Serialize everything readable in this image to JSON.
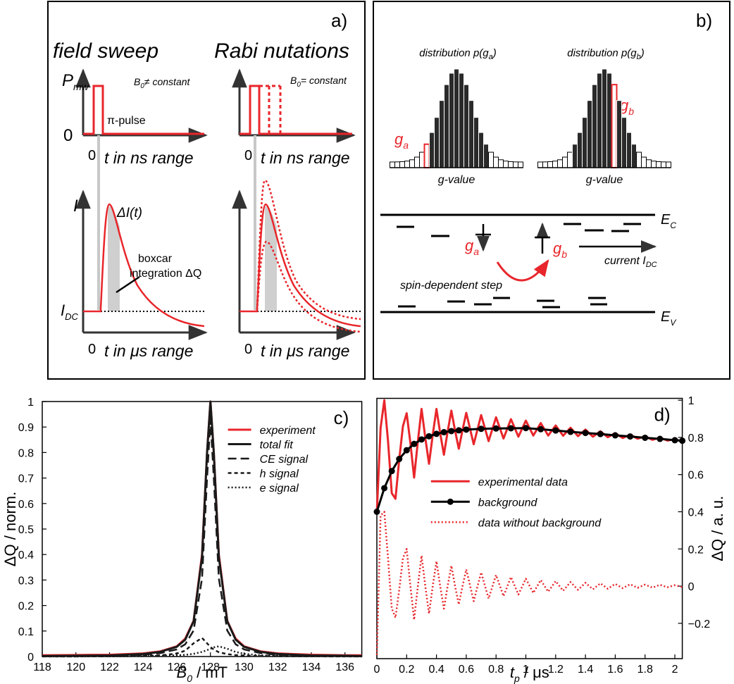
{
  "panel_a": {
    "label": "a)",
    "titles": [
      "field sweep",
      "Rabi nutations"
    ],
    "p_mw": [
      "P",
      "mw"
    ],
    "zero": "0",
    "b0_sweep": [
      "B",
      "0",
      "≠ constant"
    ],
    "b0_rabi": [
      "B",
      "0",
      "= constant"
    ],
    "pulse": "π-pulse",
    "t_ns": "t in ns range",
    "current": "I",
    "delta_i": "ΔI(t)",
    "boxcar": [
      "boxcar",
      "integration ΔQ"
    ],
    "i_dc": [
      "I",
      "DC"
    ],
    "t_us": "t in μs range"
  },
  "panel_b": {
    "label": "b)",
    "dist_a": [
      "distribution p(g",
      "a",
      ")"
    ],
    "dist_b": [
      "distribution p(g",
      "b",
      ")"
    ],
    "g_value": "g-value",
    "g_a": [
      "g",
      "a"
    ],
    "g_b": [
      "g",
      "b"
    ],
    "e_c": [
      "E",
      "C"
    ],
    "e_v": [
      "E",
      "V"
    ],
    "current": [
      "current I",
      "DC"
    ],
    "step": "spin-dependent step"
  },
  "chart_data": [
    {
      "type": "line",
      "panel_label": "c)",
      "x_label": [
        "B",
        "0",
        " / mT"
      ],
      "y_label": "ΔQ / norm.",
      "x": [
        118,
        120,
        122,
        124,
        125,
        126,
        126.5,
        127,
        127.5,
        127.8,
        128,
        128.2,
        128.5,
        129,
        129.5,
        130,
        131,
        132,
        134,
        136,
        137
      ],
      "xlim": [
        118,
        137
      ],
      "xticks": [
        118,
        120,
        122,
        124,
        126,
        128,
        130,
        132,
        134,
        136
      ],
      "ylim": [
        0,
        1
      ],
      "yticks": [
        0,
        0.1,
        0.2,
        0.3,
        0.4,
        0.5,
        0.6,
        0.7,
        0.8,
        0.9,
        1
      ],
      "y_axis_side": "left",
      "legend": "upper right",
      "series": [
        {
          "name": "experiment",
          "color": "#e8262b",
          "style": "solid",
          "values": [
            0.005,
            0.006,
            0.007,
            0.012,
            0.02,
            0.04,
            0.07,
            0.14,
            0.4,
            0.8,
            1,
            0.8,
            0.4,
            0.14,
            0.07,
            0.04,
            0.02,
            0.012,
            0.007,
            0.005,
            0.005
          ]
        },
        {
          "name": "total fit",
          "color": "#1a1a1a",
          "style": "solid",
          "values": [
            0.002,
            0.003,
            0.004,
            0.01,
            0.018,
            0.038,
            0.066,
            0.138,
            0.39,
            0.8,
            1,
            0.8,
            0.39,
            0.138,
            0.066,
            0.038,
            0.018,
            0.01,
            0.004,
            0.003,
            0.002
          ]
        },
        {
          "name": "CE signal",
          "color": "#1a1a1a",
          "style": "dashed",
          "values": [
            0.001,
            0.002,
            0.003,
            0.007,
            0.013,
            0.028,
            0.048,
            0.102,
            0.306,
            0.7,
            0.93,
            0.7,
            0.306,
            0.102,
            0.048,
            0.028,
            0.013,
            0.007,
            0.003,
            0.002,
            0.001
          ]
        },
        {
          "name": "h signal",
          "color": "#1a1a1a",
          "style": "short-dashed",
          "values": [
            0.0003,
            0.0005,
            0.0009,
            0.0023,
            0.0044,
            0.0116,
            0.023,
            0.052,
            0.073,
            0.052,
            0.0375,
            0.027,
            0.017,
            0.0093,
            0.0057,
            0.0038,
            0.002,
            0.0013,
            0.0006,
            0.0004,
            0.0002
          ]
        },
        {
          "name": "e signal",
          "color": "#1a1a1a",
          "style": "dotted",
          "values": [
            0.0003,
            0.0004,
            0.0008,
            0.0015,
            0.0025,
            0.0046,
            0.0068,
            0.0106,
            0.018,
            0.025,
            0.0305,
            0.036,
            0.04,
            0.0305,
            0.018,
            0.0106,
            0.0046,
            0.0025,
            0.001,
            0.0006,
            0.0004
          ]
        }
      ]
    },
    {
      "type": "line",
      "panel_label": "d)",
      "x_label": [
        "t",
        "p",
        " /  μs"
      ],
      "y_label": "ΔQ / a. u.",
      "xlim": [
        0,
        2.05
      ],
      "xticks": [
        0,
        0.2,
        0.4,
        0.6,
        0.8,
        1,
        1.2,
        1.4,
        1.6,
        1.8,
        2
      ],
      "ylim": [
        -0.39,
        1.01
      ],
      "yticks": [
        {
          "value": -0.2,
          "label": "−0.2"
        },
        0,
        0.2,
        0.4,
        0.6,
        0.8,
        1
      ],
      "y_axis_side": "right",
      "legend": "center",
      "series": [
        {
          "name": "experimental data",
          "color": "#e8262b",
          "style": "solid",
          "x": [
            0,
            0.025,
            0.05,
            0.075,
            0.1,
            0.125,
            0.15,
            0.175,
            0.2,
            0.225,
            0.25,
            0.275,
            0.3,
            0.325,
            0.35,
            0.375,
            0.4,
            0.425,
            0.45,
            0.475,
            0.5,
            0.525,
            0.55,
            0.575,
            0.6,
            0.65,
            0.7,
            0.75,
            0.8,
            0.85,
            0.9,
            0.95,
            1,
            1.05,
            1.1,
            1.15,
            1.2,
            1.25,
            1.3,
            1.35,
            1.4,
            1.45,
            1.5,
            1.55,
            1.6,
            1.65,
            1.7,
            1.75,
            1.8,
            1.85,
            1.9,
            1.95,
            2,
            2.05
          ],
          "values": [
            0.4,
            0.85,
            1.0,
            0.78,
            0.5,
            0.47,
            0.68,
            0.86,
            0.93,
            0.77,
            0.584,
            0.778,
            0.953,
            0.798,
            0.658,
            0.813,
            0.953,
            0.823,
            0.707,
            0.831,
            0.944,
            0.836,
            0.739,
            0.84,
            0.932,
            0.763,
            0.92,
            0.78,
            0.908,
            0.794,
            0.898,
            0.804,
            0.89,
            0.81,
            0.877,
            0.81,
            0.864,
            0.809,
            0.852,
            0.807,
            0.842,
            0.804,
            0.833,
            0.801,
            0.823,
            0.797,
            0.815,
            0.793,
            0.806,
            0.787,
            0.799,
            0.783,
            0.79,
            0.777
          ]
        },
        {
          "name": "background",
          "color": "#000000",
          "style": "solid",
          "markers": true,
          "x": [
            0,
            0.05,
            0.1,
            0.15,
            0.2,
            0.25,
            0.3,
            0.35,
            0.4,
            0.45,
            0.5,
            0.55,
            0.6,
            0.7,
            0.8,
            0.9,
            1,
            1.1,
            1.2,
            1.3,
            1.4,
            1.5,
            1.6,
            1.7,
            1.8,
            1.9,
            2,
            2.05
          ],
          "values": [
            0.4,
            0.527,
            0.619,
            0.684,
            0.731,
            0.765,
            0.789,
            0.806,
            0.819,
            0.828,
            0.834,
            0.838,
            0.842,
            0.846,
            0.848,
            0.849,
            0.85,
            0.844,
            0.837,
            0.83,
            0.824,
            0.818,
            0.811,
            0.805,
            0.798,
            0.792,
            0.785,
            0.782
          ]
        },
        {
          "name": "data without background",
          "color": "#e8262b",
          "style": "dotted",
          "x": [
            0,
            0.025,
            0.05,
            0.075,
            0.1,
            0.125,
            0.15,
            0.175,
            0.2,
            0.225,
            0.25,
            0.275,
            0.3,
            0.325,
            0.35,
            0.375,
            0.4,
            0.425,
            0.45,
            0.475,
            0.5,
            0.525,
            0.55,
            0.575,
            0.6,
            0.65,
            0.7,
            0.75,
            0.8,
            0.85,
            0.9,
            0.95,
            1,
            1.05,
            1.1,
            1.15,
            1.2,
            1.25,
            1.3,
            1.35,
            1.4,
            1.45,
            1.5,
            1.55,
            1.6,
            1.65,
            1.7,
            1.75,
            1.8,
            1.85,
            1.9,
            1.95,
            2,
            2.05
          ],
          "values": [
            -0.37,
            0.38,
            0.4,
            0.15,
            -0.12,
            -0.17,
            -0.02,
            0.15,
            0.2,
            0,
            -0.181,
            0,
            0.164,
            0,
            -0.148,
            0,
            0.134,
            0,
            -0.121,
            0,
            0.11,
            0,
            -0.099,
            0,
            0.09,
            -0.081,
            0.074,
            -0.067,
            0.06,
            -0.054,
            0.049,
            -0.045,
            0.04,
            -0.037,
            0.033,
            -0.03,
            0.027,
            -0.025,
            0.022,
            -0.02,
            0.018,
            -0.017,
            0.015,
            -0.014,
            0.012,
            -0.011,
            0.01,
            -0.009,
            0.008,
            -0.008,
            0.007,
            -0.006,
            0.005,
            -0.005
          ]
        }
      ]
    }
  ]
}
